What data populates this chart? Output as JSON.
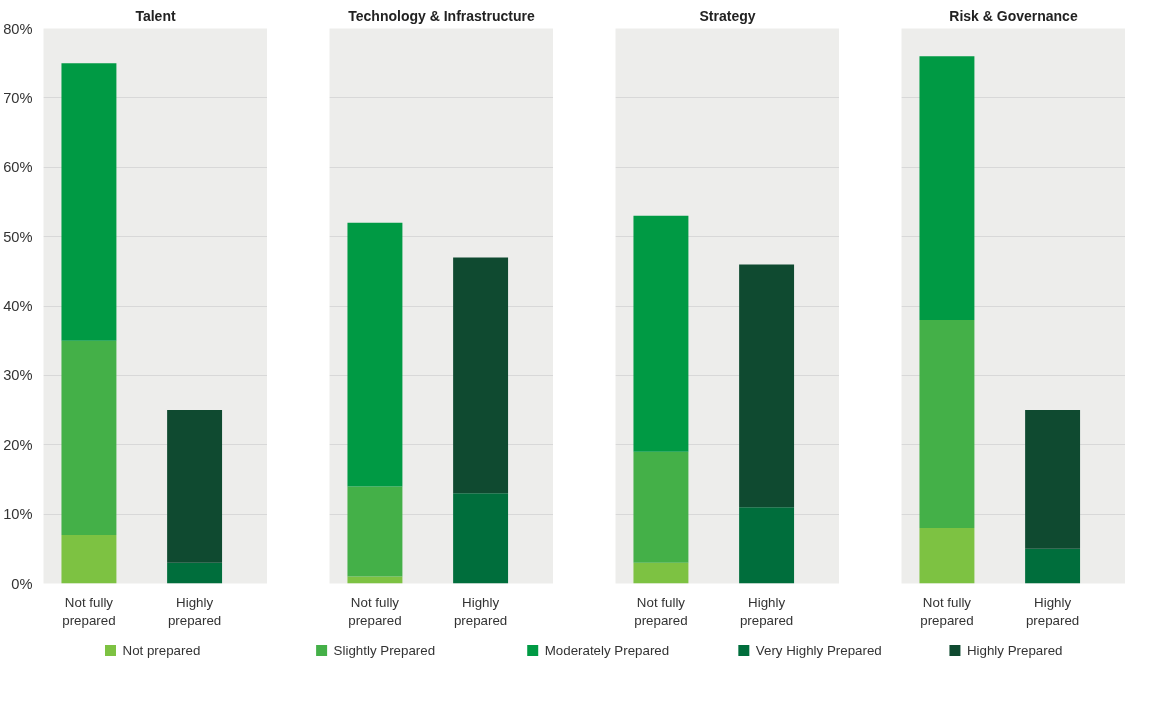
{
  "chart_data": [
    {
      "type": "bar",
      "title": "Talent",
      "stacked": true,
      "categories": [
        "Not fully prepared",
        "Highly prepared"
      ],
      "ylim": [
        0,
        80
      ],
      "yticks": [
        {
          "value": 0,
          "label": "0%"
        },
        {
          "value": 10,
          "label": "10%"
        },
        {
          "value": 20,
          "label": "20%"
        },
        {
          "value": 30,
          "label": "30%"
        },
        {
          "value": 40,
          "label": "40%"
        },
        {
          "value": 50,
          "label": "50%"
        },
        {
          "value": 60,
          "label": "60%"
        },
        {
          "value": 70,
          "label": "70%"
        },
        {
          "value": 80,
          "label": "80%"
        }
      ],
      "grid": "y",
      "legend": "bottom",
      "series": [
        {
          "name": "Not prepared",
          "color": "#7dc242",
          "values": [
            7,
            null
          ]
        },
        {
          "name": "Slightly Prepared",
          "color": "#44b048",
          "values": [
            28,
            null
          ]
        },
        {
          "name": "Moderately Prepared",
          "color": "#009a44",
          "values": [
            40,
            null
          ]
        },
        {
          "name": "Very Highly Prepared",
          "color": "#006e3c",
          "values": [
            null,
            3
          ]
        },
        {
          "name": "Highly Prepared",
          "color": "#0f4a30",
          "values": [
            null,
            22
          ]
        }
      ]
    },
    {
      "type": "bar",
      "title": "Technology & Infrastructure",
      "stacked": true,
      "categories": [
        "Not fully prepared",
        "Highly prepared"
      ],
      "ylim": [
        0,
        80
      ],
      "yticks": [
        {
          "value": 0,
          "label": null
        },
        {
          "value": 10,
          "label": null
        },
        {
          "value": 20,
          "label": null
        },
        {
          "value": 30,
          "label": null
        },
        {
          "value": 40,
          "label": null
        },
        {
          "value": 50,
          "label": null
        },
        {
          "value": 60,
          "label": null
        },
        {
          "value": 70,
          "label": null
        },
        {
          "value": 80,
          "label": null
        }
      ],
      "grid": "y",
      "tick_labels": "x",
      "series": [
        {
          "color": "#7dc242",
          "values": [
            1,
            null
          ]
        },
        {
          "color": "#44b048",
          "values": [
            13,
            null
          ]
        },
        {
          "color": "#009a44",
          "values": [
            38,
            null
          ]
        },
        {
          "color": "#006e3c",
          "values": [
            null,
            13
          ]
        },
        {
          "color": "#0f4a30",
          "values": [
            null,
            34
          ]
        }
      ]
    },
    {
      "type": "bar",
      "title": "Strategy",
      "stacked": true,
      "categories": [
        "Not fully prepared",
        "Highly prepared"
      ],
      "ylim": [
        0,
        80
      ],
      "yticks": [
        {
          "value": 0,
          "label": null
        },
        {
          "value": 10,
          "label": null
        },
        {
          "value": 20,
          "label": null
        },
        {
          "value": 30,
          "label": null
        },
        {
          "value": 40,
          "label": null
        },
        {
          "value": 50,
          "label": null
        },
        {
          "value": 60,
          "label": null
        },
        {
          "value": 70,
          "label": null
        },
        {
          "value": 80,
          "label": null
        }
      ],
      "grid": "y",
      "tick_labels": "x",
      "series": [
        {
          "color": "#7dc242",
          "values": [
            3,
            null
          ]
        },
        {
          "color": "#44b048",
          "values": [
            16,
            null
          ]
        },
        {
          "color": "#009a44",
          "values": [
            34,
            null
          ]
        },
        {
          "color": "#006e3c",
          "values": [
            null,
            11
          ]
        },
        {
          "color": "#0f4a30",
          "values": [
            null,
            35
          ]
        }
      ]
    },
    {
      "type": "bar",
      "title": "Risk & Governance",
      "stacked": true,
      "categories": [
        "Not fully prepared",
        "Highly prepared"
      ],
      "ylim": [
        0,
        80
      ],
      "yticks": [
        {
          "value": 0,
          "label": null
        },
        {
          "value": 10,
          "label": null
        },
        {
          "value": 20,
          "label": null
        },
        {
          "value": 30,
          "label": null
        },
        {
          "value": 40,
          "label": null
        },
        {
          "value": 50,
          "label": null
        },
        {
          "value": 60,
          "label": null
        },
        {
          "value": 70,
          "label": null
        },
        {
          "value": 80,
          "label": null
        }
      ],
      "grid": "y",
      "tick_labels": "x",
      "series": [
        {
          "color": "#7dc242",
          "values": [
            8,
            null
          ]
        },
        {
          "color": "#44b048",
          "values": [
            30,
            null
          ]
        },
        {
          "color": "#009a44",
          "values": [
            38,
            null
          ]
        },
        {
          "color": "#006e3c",
          "values": [
            null,
            5
          ]
        },
        {
          "color": "#0f4a30",
          "values": [
            null,
            20
          ]
        }
      ]
    }
  ]
}
